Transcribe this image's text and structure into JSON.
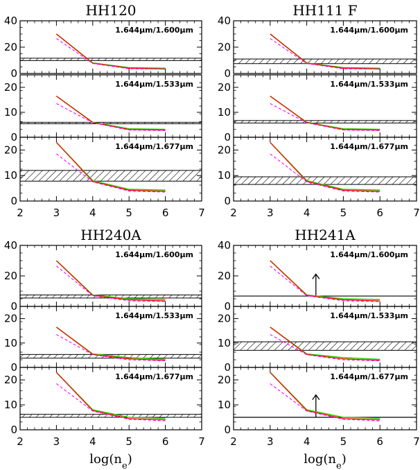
{
  "colors": {
    "axes": "#000000",
    "model_dens_1": "#33cc00",
    "model_dens_2": "#ff0000",
    "model_dashed": "#ff00ff",
    "hatch": "#000000"
  },
  "chart_data": [
    {
      "type": "line",
      "title": "HH120",
      "xlabel": "",
      "xlim": [
        2,
        7
      ],
      "x_ticks": [
        "2",
        "3",
        "4",
        "5",
        "6",
        "7"
      ],
      "subplots": [
        {
          "label": "1.644μm/1.600μm",
          "ylim": [
            0,
            40
          ],
          "y_ticks": [
            "0",
            "20",
            "40"
          ],
          "band": [
            9.8,
            11.6
          ],
          "arrow": false,
          "series": [
            {
              "style": "green-solid",
              "x": [
                3,
                4,
                5,
                6
              ],
              "y": [
                30,
                8.0,
                4.5,
                4.0
              ]
            },
            {
              "style": "red-solid",
              "x": [
                3,
                4,
                5,
                6
              ],
              "y": [
                30,
                7.8,
                4.0,
                3.4
              ]
            },
            {
              "style": "magenta-dashed",
              "x": [
                3,
                4,
                5,
                6
              ],
              "y": [
                26.5,
                7.6,
                3.6,
                3.3
              ]
            }
          ]
        },
        {
          "label": "1.644μm/1.533μm",
          "ylim": [
            0,
            25
          ],
          "y_ticks": [
            "0",
            "10",
            "20"
          ],
          "band": [
            5.4,
            6.0
          ],
          "arrow": false,
          "series": [
            {
              "style": "green-solid",
              "x": [
                3,
                4,
                5,
                6
              ],
              "y": [
                16.5,
                6.0,
                3.4,
                3.2
              ]
            },
            {
              "style": "red-solid",
              "x": [
                3,
                4,
                5,
                6
              ],
              "y": [
                16.5,
                5.9,
                3.1,
                2.9
              ]
            },
            {
              "style": "magenta-dashed",
              "x": [
                3,
                4,
                5,
                6
              ],
              "y": [
                13.5,
                5.8,
                2.9,
                2.7
              ]
            }
          ]
        },
        {
          "label": "1.644μm/1.677μm",
          "ylim": [
            0,
            25
          ],
          "y_ticks": [
            "0",
            "10",
            "20"
          ],
          "band": [
            7.8,
            12.0
          ],
          "arrow": false,
          "series": [
            {
              "style": "green-solid",
              "x": [
                3,
                4,
                5,
                6
              ],
              "y": [
                23,
                8.0,
                4.6,
                4.3
              ]
            },
            {
              "style": "red-solid",
              "x": [
                3,
                4,
                5,
                6
              ],
              "y": [
                23,
                7.7,
                4.2,
                3.8
              ]
            },
            {
              "style": "magenta-dashed",
              "x": [
                3,
                4,
                5,
                6
              ],
              "y": [
                18.5,
                7.5,
                3.9,
                3.5
              ]
            }
          ]
        }
      ]
    },
    {
      "type": "line",
      "title": "HH111 F",
      "xlabel": "",
      "xlim": [
        2,
        7
      ],
      "x_ticks": [
        "2",
        "3",
        "4",
        "5",
        "6",
        "7"
      ],
      "subplots": [
        {
          "label": "1.644μm/1.600μm",
          "ylim": [
            0,
            40
          ],
          "y_ticks": [
            "0",
            "20",
            "40"
          ],
          "band": [
            7.5,
            11.0
          ],
          "arrow": false,
          "series": [
            {
              "style": "green-solid",
              "x": [
                3,
                4,
                5,
                6
              ],
              "y": [
                30,
                8.0,
                4.5,
                4.0
              ]
            },
            {
              "style": "red-solid",
              "x": [
                3,
                4,
                5,
                6
              ],
              "y": [
                30,
                7.8,
                4.0,
                3.4
              ]
            },
            {
              "style": "magenta-dashed",
              "x": [
                3,
                4,
                5,
                6
              ],
              "y": [
                26.5,
                7.6,
                3.6,
                3.3
              ]
            }
          ]
        },
        {
          "label": "1.644μm/1.533μm",
          "ylim": [
            0,
            25
          ],
          "y_ticks": [
            "0",
            "10",
            "20"
          ],
          "band": [
            5.7,
            6.7
          ],
          "arrow": false,
          "series": [
            {
              "style": "green-solid",
              "x": [
                3,
                4,
                5,
                6
              ],
              "y": [
                16.5,
                6.0,
                3.4,
                3.2
              ]
            },
            {
              "style": "red-solid",
              "x": [
                3,
                4,
                5,
                6
              ],
              "y": [
                16.5,
                5.9,
                3.1,
                2.9
              ]
            },
            {
              "style": "magenta-dashed",
              "x": [
                3,
                4,
                5,
                6
              ],
              "y": [
                13.5,
                5.8,
                2.9,
                2.7
              ]
            }
          ]
        },
        {
          "label": "1.644μm/1.677μm",
          "ylim": [
            0,
            25
          ],
          "y_ticks": [
            "0",
            "10",
            "20"
          ],
          "band": [
            6.5,
            9.5
          ],
          "arrow": false,
          "series": [
            {
              "style": "green-solid",
              "x": [
                3,
                4,
                5,
                6
              ],
              "y": [
                23,
                8.0,
                4.6,
                4.3
              ]
            },
            {
              "style": "red-solid",
              "x": [
                3,
                4,
                5,
                6
              ],
              "y": [
                23,
                7.7,
                4.2,
                3.8
              ]
            },
            {
              "style": "magenta-dashed",
              "x": [
                3,
                4,
                5,
                6
              ],
              "y": [
                18.5,
                7.5,
                3.9,
                3.5
              ]
            }
          ]
        }
      ]
    },
    {
      "type": "line",
      "title": "HH240A",
      "xlabel": "log(n_e)",
      "xlim": [
        2,
        7
      ],
      "x_ticks": [
        "2",
        "3",
        "4",
        "5",
        "6",
        "7"
      ],
      "subplots": [
        {
          "label": "1.644μm/1.600μm",
          "ylim": [
            0,
            40
          ],
          "y_ticks": [
            "0",
            "20",
            "40"
          ],
          "band": [
            5.5,
            7.5
          ],
          "arrow": false,
          "series": [
            {
              "style": "green-solid",
              "x": [
                3,
                4,
                5,
                6
              ],
              "y": [
                30,
                7.5,
                5.0,
                4.5
              ]
            },
            {
              "style": "red-solid",
              "x": [
                3,
                4,
                5,
                6
              ],
              "y": [
                30,
                7.2,
                4.3,
                3.6
              ]
            },
            {
              "style": "magenta-dashed",
              "x": [
                3,
                4,
                5,
                6
              ],
              "y": [
                26.5,
                7.0,
                3.7,
                3.2
              ]
            }
          ]
        },
        {
          "label": "1.644μm/1.533μm",
          "ylim": [
            0,
            25
          ],
          "y_ticks": [
            "0",
            "10",
            "20"
          ],
          "band": [
            3.8,
            5.3
          ],
          "arrow": false,
          "series": [
            {
              "style": "green-solid",
              "x": [
                3,
                4,
                5,
                6
              ],
              "y": [
                16.5,
                5.5,
                4.0,
                3.3
              ]
            },
            {
              "style": "red-solid",
              "x": [
                3,
                4,
                5,
                6
              ],
              "y": [
                16.5,
                5.3,
                3.5,
                2.9
              ]
            },
            {
              "style": "magenta-dashed",
              "x": [
                3,
                4,
                5,
                6
              ],
              "y": [
                13.5,
                5.2,
                3.1,
                2.7
              ]
            }
          ]
        },
        {
          "label": "1.644μm/1.677μm",
          "ylim": [
            0,
            25
          ],
          "y_ticks": [
            "0",
            "10",
            "20"
          ],
          "band": [
            5.0,
            6.2
          ],
          "arrow": false,
          "series": [
            {
              "style": "green-solid",
              "x": [
                3,
                4,
                5,
                6
              ],
              "y": [
                23,
                8.0,
                5.0,
                4.6
              ]
            },
            {
              "style": "red-solid",
              "x": [
                3,
                4,
                5,
                6
              ],
              "y": [
                23,
                7.7,
                4.5,
                4.0
              ]
            },
            {
              "style": "magenta-dashed",
              "x": [
                3,
                4,
                5,
                6
              ],
              "y": [
                18.5,
                7.5,
                4.2,
                3.6
              ]
            }
          ]
        }
      ]
    },
    {
      "type": "line",
      "title": "HH241A",
      "xlabel": "log(n_e)",
      "xlim": [
        2,
        7
      ],
      "x_ticks": [
        "2",
        "3",
        "4",
        "5",
        "6",
        "7"
      ],
      "subplots": [
        {
          "label": "1.644μm/1.600μm",
          "ylim": [
            0,
            40
          ],
          "y_ticks": [
            "0",
            "20",
            "40"
          ],
          "line": 6.8,
          "arrow": true,
          "arrow_x": 4.25,
          "series": [
            {
              "style": "green-solid",
              "x": [
                3,
                4,
                5,
                6
              ],
              "y": [
                30,
                7.5,
                5.0,
                4.5
              ]
            },
            {
              "style": "red-solid",
              "x": [
                3,
                4,
                5,
                6
              ],
              "y": [
                30,
                7.2,
                4.3,
                3.6
              ]
            },
            {
              "style": "magenta-dashed",
              "x": [
                3,
                4,
                5,
                6
              ],
              "y": [
                26.5,
                7.0,
                3.7,
                3.2
              ]
            }
          ]
        },
        {
          "label": "1.644μm/1.533μm",
          "ylim": [
            0,
            25
          ],
          "y_ticks": [
            "0",
            "10",
            "20"
          ],
          "band": [
            7.0,
            10.5
          ],
          "arrow": false,
          "series": [
            {
              "style": "green-solid",
              "x": [
                3,
                4,
                5,
                6
              ],
              "y": [
                16.5,
                5.5,
                4.0,
                3.3
              ]
            },
            {
              "style": "red-solid",
              "x": [
                3,
                4,
                5,
                6
              ],
              "y": [
                16.5,
                5.3,
                3.5,
                2.9
              ]
            },
            {
              "style": "magenta-dashed",
              "x": [
                3,
                4,
                5,
                6
              ],
              "y": [
                13.5,
                5.2,
                3.1,
                2.7
              ]
            }
          ]
        },
        {
          "label": "1.644μm/1.677μm",
          "ylim": [
            0,
            25
          ],
          "y_ticks": [
            "0",
            "10",
            "20"
          ],
          "line": 5.0,
          "arrow": true,
          "arrow_x": 4.25,
          "series": [
            {
              "style": "green-solid",
              "x": [
                3,
                4,
                5,
                6
              ],
              "y": [
                23,
                8.0,
                5.0,
                4.6
              ]
            },
            {
              "style": "red-solid",
              "x": [
                3,
                4,
                5,
                6
              ],
              "y": [
                23,
                7.7,
                4.5,
                4.0
              ]
            },
            {
              "style": "magenta-dashed",
              "x": [
                3,
                4,
                5,
                6
              ],
              "y": [
                18.5,
                7.5,
                4.2,
                3.6
              ]
            }
          ]
        }
      ]
    }
  ]
}
